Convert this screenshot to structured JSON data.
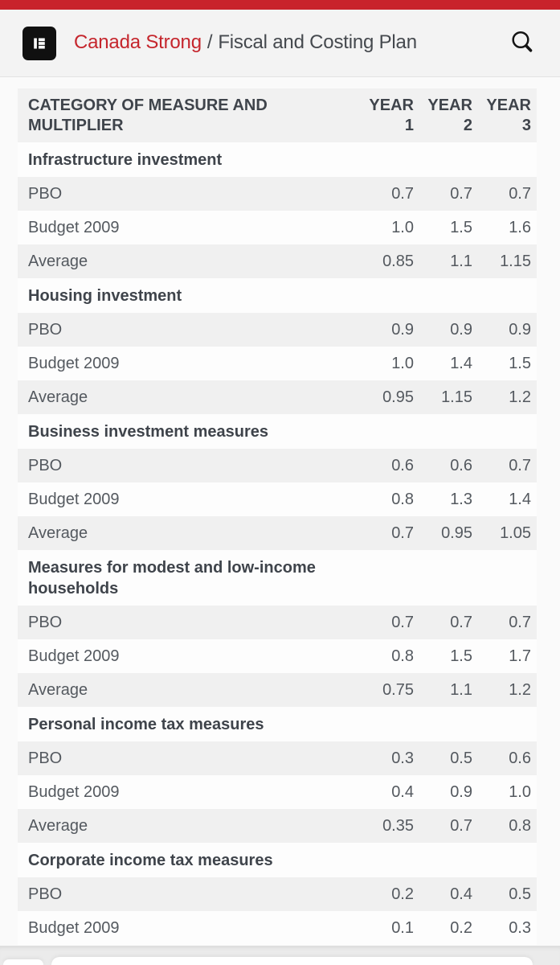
{
  "colors": {
    "topbar_red": "#c8232b",
    "brand_red": "#c5262d",
    "row_shade": "#f0f0f0"
  },
  "header": {
    "logo": "elementor-logo",
    "site_name": "Canada Strong",
    "separator": "/",
    "page_title": "Fiscal and Costing Plan",
    "search_icon": "search-icon"
  },
  "table": {
    "columns": [
      "CATEGORY OF MEASURE AND MULTIPLIER",
      "YEAR 1",
      "YEAR 2",
      "YEAR 3"
    ],
    "sections": [
      {
        "title": "Infrastructure investment",
        "rows": [
          [
            "PBO",
            "0.7",
            "0.7",
            "0.7"
          ],
          [
            "Budget 2009",
            "1.0",
            "1.5",
            "1.6"
          ],
          [
            "Average",
            "0.85",
            "1.1",
            "1.15"
          ]
        ]
      },
      {
        "title": "Housing investment",
        "rows": [
          [
            "PBO",
            "0.9",
            "0.9",
            "0.9"
          ],
          [
            "Budget 2009",
            "1.0",
            "1.4",
            "1.5"
          ],
          [
            "Average",
            "0.95",
            "1.15",
            "1.2"
          ]
        ]
      },
      {
        "title": "Business investment measures",
        "rows": [
          [
            "PBO",
            "0.6",
            "0.6",
            "0.7"
          ],
          [
            "Budget 2009",
            "0.8",
            "1.3",
            "1.4"
          ],
          [
            "Average",
            "0.7",
            "0.95",
            "1.05"
          ]
        ]
      },
      {
        "title": "Measures for modest and low-income households",
        "rows": [
          [
            "PBO",
            "0.7",
            "0.7",
            "0.7"
          ],
          [
            "Budget 2009",
            "0.8",
            "1.5",
            "1.7"
          ],
          [
            "Average",
            "0.75",
            "1.1",
            "1.2"
          ]
        ]
      },
      {
        "title": "Personal income tax measures",
        "rows": [
          [
            "PBO",
            "0.3",
            "0.5",
            "0.6"
          ],
          [
            "Budget 2009",
            "0.4",
            "0.9",
            "1.0"
          ],
          [
            "Average",
            "0.35",
            "0.7",
            "0.8"
          ]
        ]
      },
      {
        "title": "Corporate income tax measures",
        "rows": [
          [
            "PBO",
            "0.2",
            "0.4",
            "0.5"
          ],
          [
            "Budget 2009",
            "0.1",
            "0.2",
            "0.3"
          ]
        ]
      }
    ]
  }
}
